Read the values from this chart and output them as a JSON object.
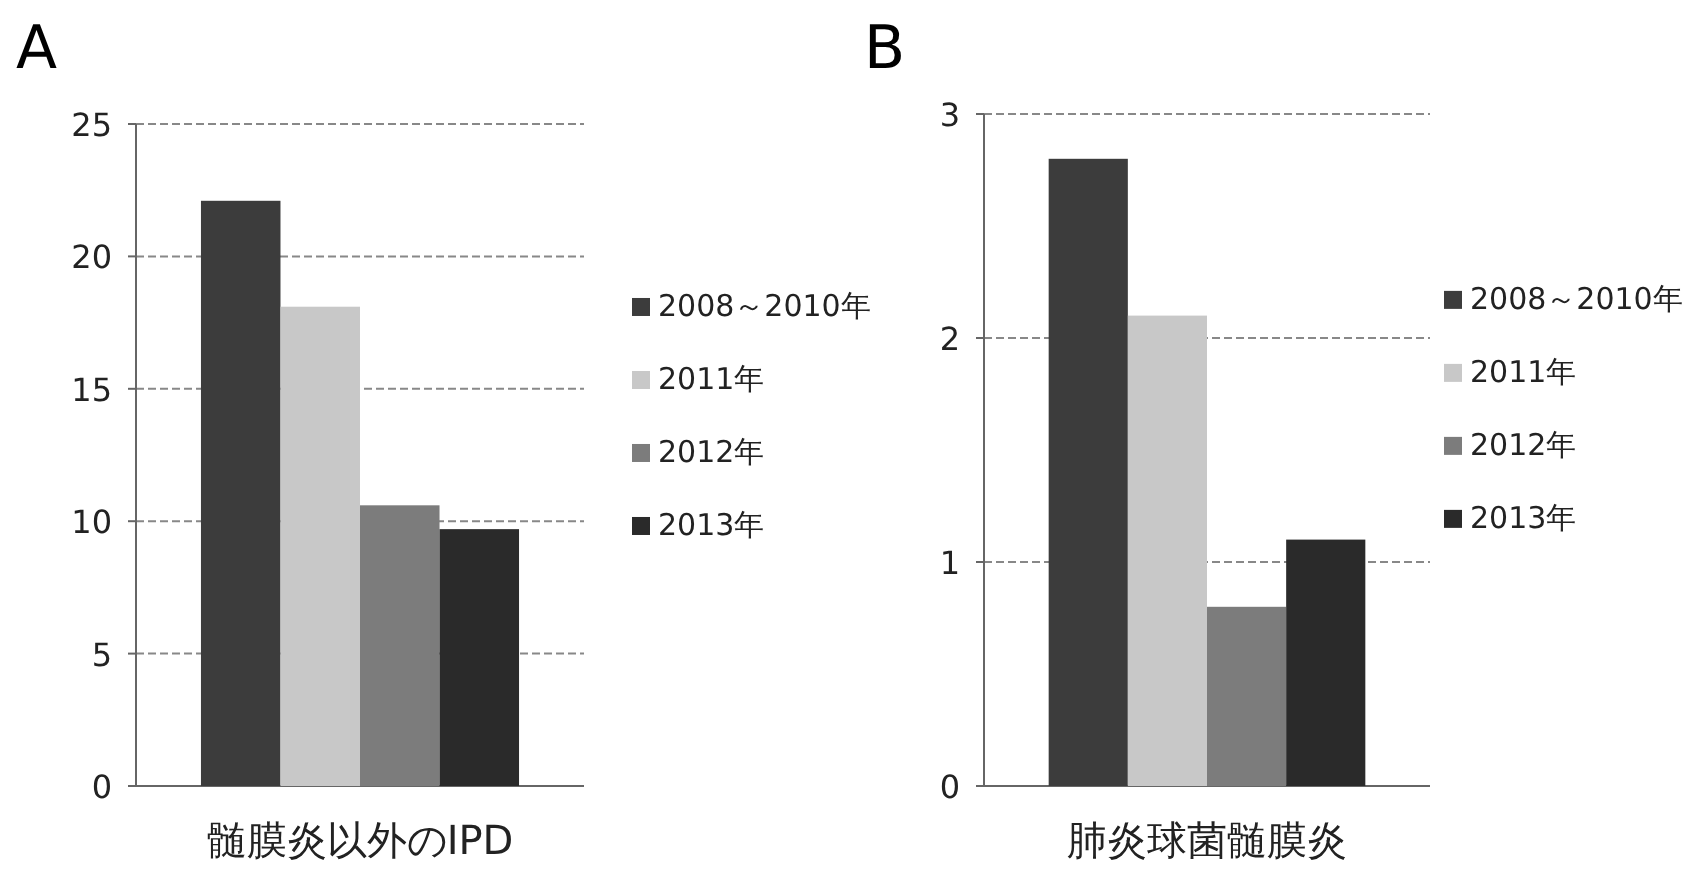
{
  "chart_data": [
    {
      "type": "bar",
      "title": "A",
      "categories": [
        "髄膜炎以外のIPD"
      ],
      "ylim": [
        0,
        25
      ],
      "yticks": [
        0,
        5,
        10,
        15,
        20,
        25
      ],
      "grid": "y",
      "legend": "right",
      "series": [
        {
          "name": "2008～2010年",
          "color": "#3c3c3c",
          "values": [
            22.1
          ]
        },
        {
          "name": "2011年",
          "color": "#c8c8c8",
          "values": [
            18.1
          ]
        },
        {
          "name": "2012年",
          "color": "#7c7c7c",
          "values": [
            10.6
          ]
        },
        {
          "name": "2013年",
          "color": "#2a2a2a",
          "values": [
            9.7
          ]
        }
      ]
    },
    {
      "type": "bar",
      "title": "B",
      "categories": [
        "肺炎球菌髄膜炎"
      ],
      "ylim": [
        0,
        3
      ],
      "yticks": [
        0,
        1,
        2,
        3
      ],
      "grid": "y",
      "legend": "right",
      "series": [
        {
          "name": "2008～2010年",
          "color": "#3c3c3c",
          "values": [
            2.8
          ]
        },
        {
          "name": "2011年",
          "color": "#c8c8c8",
          "values": [
            2.1
          ]
        },
        {
          "name": "2012年",
          "color": "#7c7c7c",
          "values": [
            0.8
          ]
        },
        {
          "name": "2013年",
          "color": "#2a2a2a",
          "values": [
            1.1
          ]
        }
      ]
    }
  ]
}
